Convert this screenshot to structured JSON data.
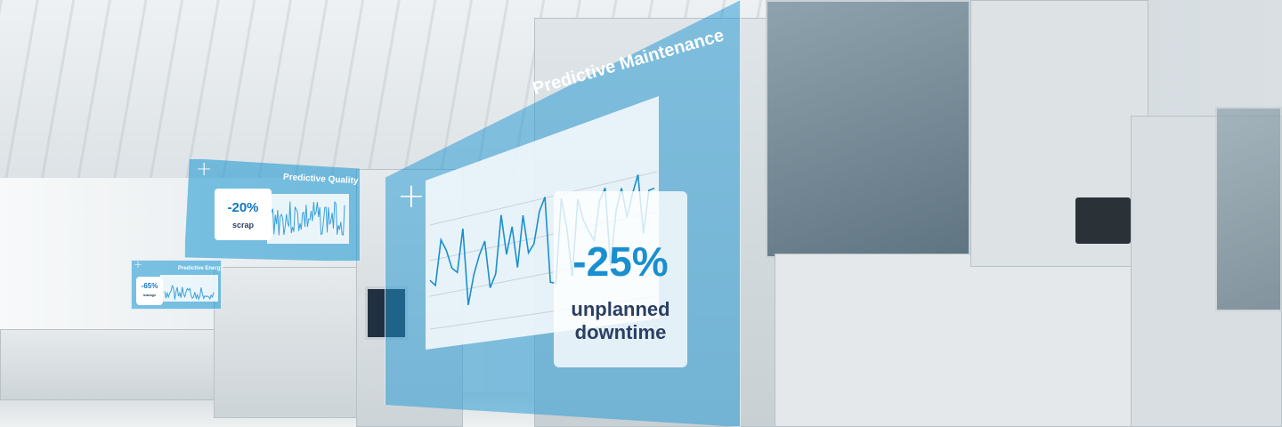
{
  "overlays": {
    "quality": {
      "title": "Predictive Quality",
      "value": "-20%",
      "label": "scrap"
    },
    "energy": {
      "title": "Predictive Energy",
      "value": "-65%",
      "label": "leakage"
    },
    "maintenance": {
      "title": "Predictive Maintenance",
      "value": "-25%",
      "label_line1": "unplanned",
      "label_line2": "downtime"
    }
  },
  "colors": {
    "accent": "#1a8fd0",
    "text_dark": "#2b3f63",
    "panel": "#1696d2"
  },
  "icons": [
    "plus-icon"
  ]
}
